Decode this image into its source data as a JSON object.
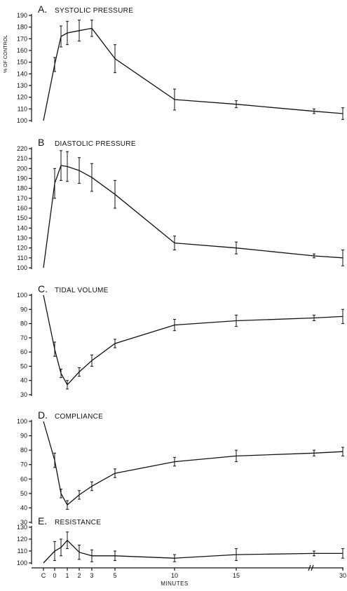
{
  "chart_data": [
    {
      "type": "line",
      "letter": "A.",
      "title": "SYSTOLIC PRESSURE",
      "ylabel": "% OF CONTROL",
      "ylim": [
        100,
        190
      ],
      "yticks": [
        100,
        110,
        120,
        130,
        140,
        150,
        160,
        170,
        180,
        190
      ],
      "x": [
        "C",
        0,
        0.5,
        1,
        2,
        3,
        5,
        10,
        15,
        25,
        30
      ],
      "values": [
        100,
        148,
        172,
        175,
        177,
        179,
        153,
        118,
        114,
        108,
        106
      ],
      "err": [
        0,
        6,
        9,
        10,
        9,
        7,
        12,
        9,
        3,
        2,
        5
      ]
    },
    {
      "type": "line",
      "letter": "B",
      "title": "DIASTOLIC PRESSURE",
      "ylabel": "",
      "ylim": [
        100,
        220
      ],
      "yticks": [
        100,
        110,
        120,
        130,
        140,
        150,
        160,
        170,
        180,
        190,
        200,
        210,
        220
      ],
      "x": [
        "C",
        0,
        0.5,
        1,
        2,
        3,
        5,
        10,
        15,
        25,
        30
      ],
      "values": [
        100,
        185,
        203,
        202,
        198,
        191,
        174,
        125,
        120,
        112,
        110
      ],
      "err": [
        0,
        15,
        15,
        15,
        13,
        14,
        14,
        7,
        6,
        2,
        8
      ]
    },
    {
      "type": "line",
      "letter": "C.",
      "title": "TIDAL VOLUME",
      "ylabel": "",
      "ylim": [
        30,
        100
      ],
      "yticks": [
        30,
        40,
        50,
        60,
        70,
        80,
        90,
        100
      ],
      "x": [
        "C",
        0,
        0.5,
        1,
        2,
        3,
        5,
        10,
        15,
        25,
        30
      ],
      "values": [
        100,
        62,
        45,
        37,
        46,
        54,
        66,
        79,
        82,
        84,
        85
      ],
      "err": [
        0,
        5,
        3,
        3,
        3,
        4,
        3,
        4,
        4,
        2,
        5
      ]
    },
    {
      "type": "line",
      "letter": "D.",
      "title": "COMPLIANCE",
      "ylabel": "",
      "ylim": [
        30,
        100
      ],
      "yticks": [
        30,
        40,
        50,
        60,
        70,
        80,
        90,
        100
      ],
      "x": [
        "C",
        0,
        0.5,
        1,
        2,
        3,
        5,
        10,
        15,
        25,
        30
      ],
      "values": [
        100,
        73,
        50,
        42,
        49,
        55,
        64,
        72,
        76,
        78,
        79
      ],
      "err": [
        0,
        5,
        3,
        3,
        3,
        3,
        3,
        3,
        4,
        2,
        3
      ]
    },
    {
      "type": "line",
      "letter": "E.",
      "title": "RESISTANCE",
      "ylabel": "",
      "ylim": [
        100,
        130
      ],
      "yticks": [
        100,
        110,
        120,
        130
      ],
      "x": [
        "C",
        0,
        0.5,
        1,
        2,
        3,
        5,
        10,
        15,
        25,
        30
      ],
      "values": [
        100,
        110,
        113,
        119,
        109,
        106,
        106,
        104,
        107,
        108,
        108
      ],
      "err": [
        0,
        8,
        7,
        7,
        6,
        5,
        4,
        3,
        5,
        2,
        4
      ]
    }
  ],
  "x_axis": {
    "label": "MINUTES",
    "tick_positions": [
      "C",
      0,
      1,
      2,
      3,
      5,
      10,
      15,
      30
    ],
    "tick_labels": [
      "C",
      "0",
      "1",
      "2",
      "3",
      "5",
      "10",
      "15",
      "30"
    ]
  }
}
